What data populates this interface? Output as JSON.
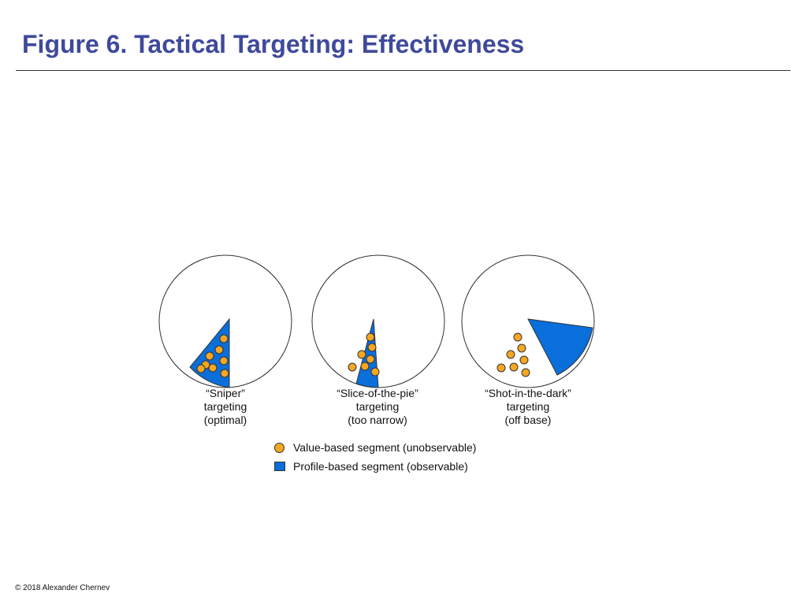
{
  "title": "Figure 6. Tactical Targeting: Effectiveness",
  "colors": {
    "value_dot": "#f5a623",
    "profile_fill": "#0a6edb",
    "title": "#3f4a9b"
  },
  "panels": [
    {
      "id": "sniper",
      "caption": [
        "“Sniper”",
        "targeting",
        "(optimal)"
      ]
    },
    {
      "id": "slice",
      "caption": [
        "“Slice-of-the-pie”",
        "targeting",
        "(too narrow)"
      ]
    },
    {
      "id": "shot",
      "caption": [
        "“Shot-in-the-dark”",
        "targeting",
        "(off base)"
      ]
    }
  ],
  "legend": {
    "value_based": "Value-based segment (unobservable)",
    "profile_based": "Profile-based segment (observable)"
  },
  "copyright": "© 2018 Alexander Chernev"
}
